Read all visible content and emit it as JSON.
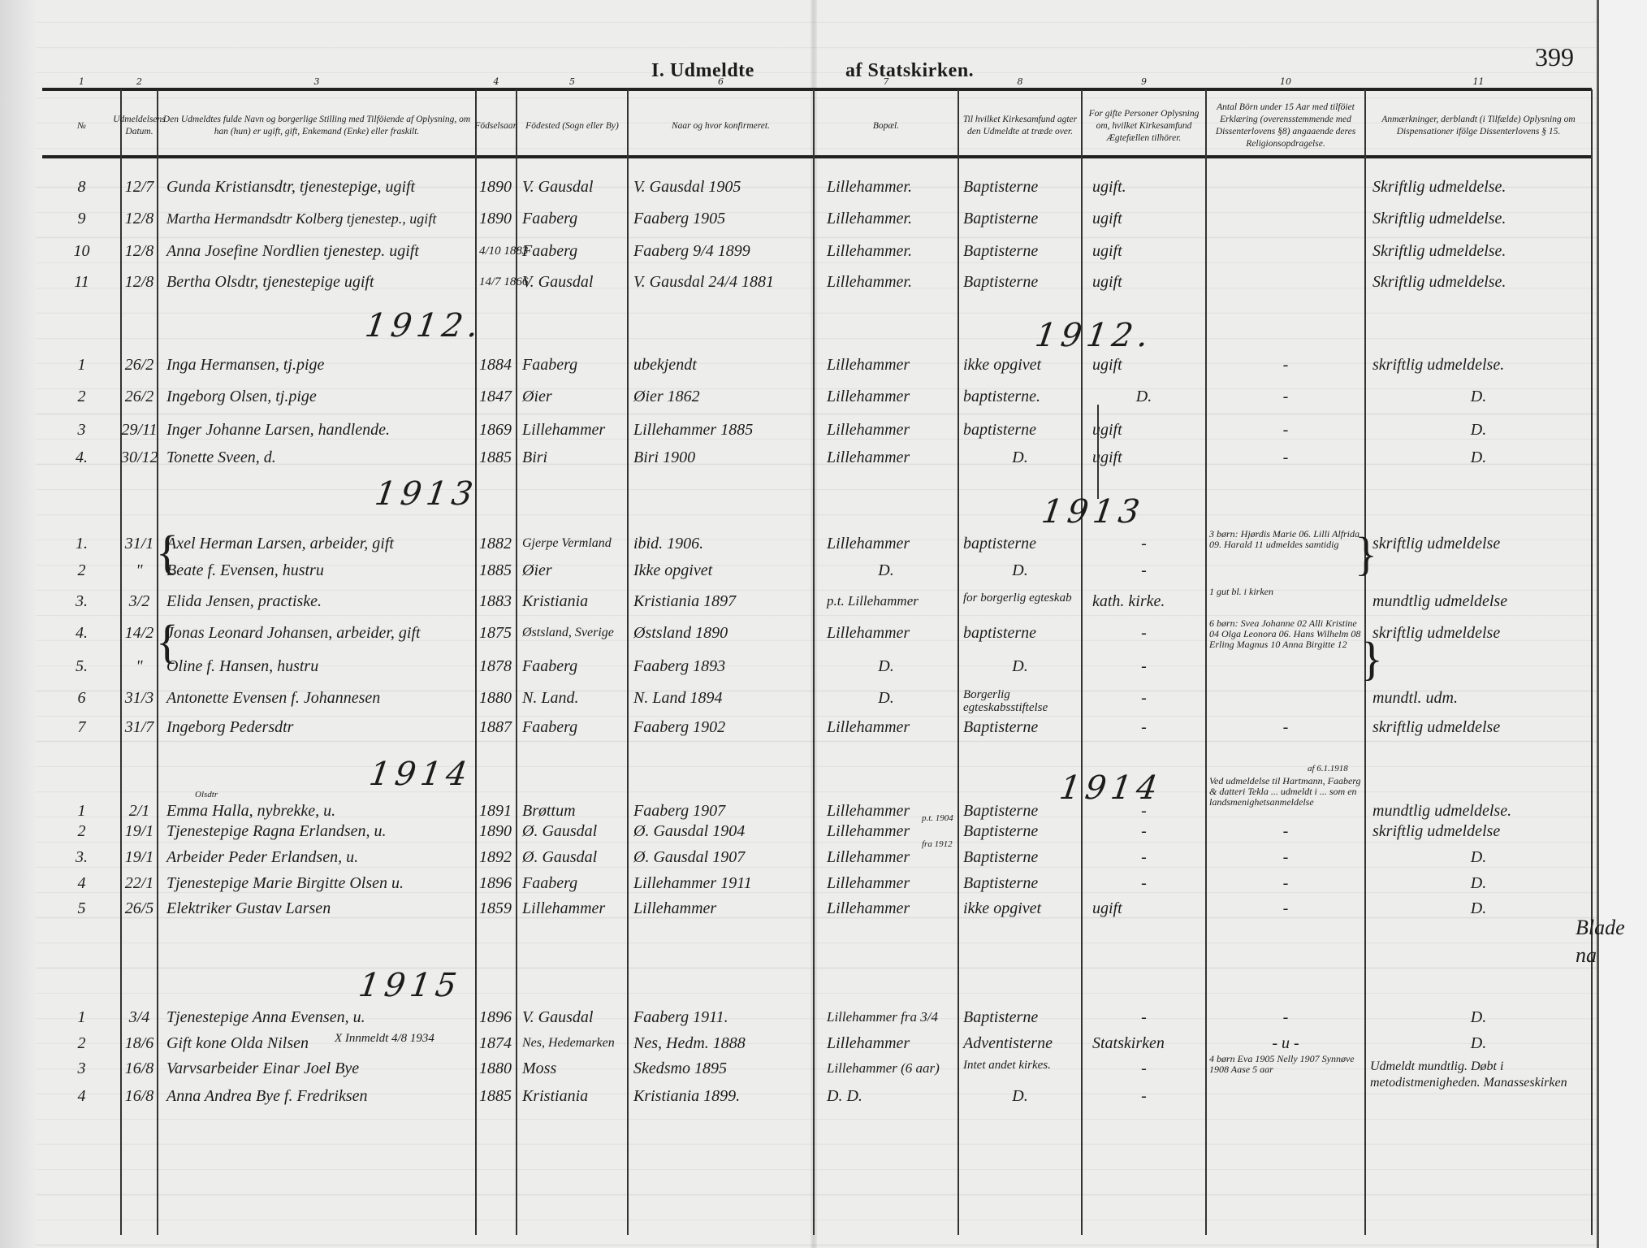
{
  "page": {
    "title_left": "I. Udmeldte",
    "title_right": "af Statskirken.",
    "page_number": "399",
    "margin_note": [
      "Blade",
      "na"
    ]
  },
  "columns": [
    {
      "number": "1",
      "header": "№"
    },
    {
      "number": "2",
      "header": "Udmeldelsens Datum."
    },
    {
      "number": "3",
      "header": "Den Udmeldtes fulde Navn og borgerlige Stilling med Tilföiende af Oplysning, om han (hun) er ugift, gift, Enkemand (Enke) eller fraskilt."
    },
    {
      "number": "4",
      "header": "Födselsaar."
    },
    {
      "number": "5",
      "header": "Födested (Sogn eller By)"
    },
    {
      "number": "6",
      "header": "Naar og hvor konfirmeret."
    },
    {
      "number": "7",
      "header": "Bopæl."
    },
    {
      "number": "8",
      "header": "Til hvilket Kirkesamfund agter den Udmeldte at træde over."
    },
    {
      "number": "9",
      "header": "For gifte Personer Oplysning om, hvilket Kirkesamfund Ægtefællen tilhörer."
    },
    {
      "number": "10",
      "header": "Antal Börn under 15 Aar med tilföiet Erklæring (overensstemmende med Dissenterlovens §8) angaaende deres Religionsopdragelse."
    },
    {
      "number": "11",
      "header": "Anmærkninger, derblandt (i Tilfælde) Oplysning om Dispensationer ifölge Dissenterlovens § 15."
    }
  ],
  "sections": [
    {
      "year_left": "",
      "year_right": "",
      "rows": [
        {
          "no": "8",
          "date": "12/7",
          "name": "Gunda Kristiansdtr, tjenestepige, ugift",
          "birth_year": "1890",
          "birthplace": "V. Gausdal",
          "confirmed": "V. Gausdal 1905",
          "residence": "Lillehammer.",
          "new_church": "Baptisterne",
          "spouse_church": "ugift.",
          "children": "",
          "remarks": "Skriftlig udmeldelse."
        },
        {
          "no": "9",
          "date": "12/8",
          "name": "Martha Hermandsdtr Kolberg tjenestep., ugift",
          "birth_year": "1890",
          "birthplace": "Faaberg",
          "confirmed": "Faaberg 1905",
          "residence": "Lillehammer.",
          "new_church": "Baptisterne",
          "spouse_church": "ugift",
          "children": "",
          "remarks": "Skriftlig udmeldelse."
        },
        {
          "no": "10",
          "date": "12/8",
          "name": "Anna Josefine Nordlien tjenestep. ugift",
          "birth_year": "4/10 1883",
          "birthplace": "Faaberg",
          "confirmed": "Faaberg 9/4 1899",
          "residence": "Lillehammer.",
          "new_church": "Baptisterne",
          "spouse_church": "ugift",
          "children": "",
          "remarks": "Skriftlig udmeldelse."
        },
        {
          "no": "11",
          "date": "12/8",
          "name": "Bertha Olsdtr, tjenestepige ugift",
          "birth_year": "14/7 1866",
          "birthplace": "V. Gausdal",
          "confirmed": "V. Gausdal 24/4 1881",
          "residence": "Lillehammer.",
          "new_church": "Baptisterne",
          "spouse_church": "ugift",
          "children": "",
          "remarks": "Skriftlig udmeldelse."
        }
      ]
    },
    {
      "year_left": "1912.",
      "year_right": "1912.",
      "rows": [
        {
          "no": "1",
          "date": "26/2",
          "name": "Inga Hermansen, tj.pige",
          "birth_year": "1884",
          "birthplace": "Faaberg",
          "confirmed": "ubekjendt",
          "residence": "Lillehammer",
          "new_church": "ikke opgivet",
          "spouse_church": "ugift",
          "children": "-",
          "remarks": "skriftlig udmeldelse."
        },
        {
          "no": "2",
          "date": "26/2",
          "name": "Ingeborg Olsen, tj.pige",
          "birth_year": "1847",
          "birthplace": "Øier",
          "confirmed": "Øier 1862",
          "residence": "Lillehammer",
          "new_church": "baptisterne.",
          "spouse_church": "D.",
          "children": "-",
          "remarks": "D."
        },
        {
          "no": "3",
          "date": "29/11",
          "name": "Inger Johanne Larsen, handlende.",
          "birth_year": "1869",
          "birthplace": "Lillehammer",
          "confirmed": "Lillehammer 1885",
          "residence": "Lillehammer",
          "new_church": "baptisterne",
          "spouse_church": "ugift",
          "children": "-",
          "remarks": "D."
        },
        {
          "no": "4.",
          "date": "30/12",
          "name": "Tonette Sveen, d.",
          "birth_year": "1885",
          "birthplace": "Biri",
          "confirmed": "Biri 1900",
          "residence": "Lillehammer",
          "new_church": "D.",
          "spouse_church": "ugift",
          "children": "-",
          "remarks": "D."
        }
      ]
    },
    {
      "year_left": "1913",
      "year_right": "1913",
      "rows": [
        {
          "no": "1.",
          "date": "31/1",
          "name": "Axel Herman Larsen, arbeider, gift",
          "birth_year": "1882",
          "birthplace": "Gjerpe Vermland",
          "confirmed": "ibid. 1906.",
          "residence": "Lillehammer",
          "new_church": "baptisterne",
          "spouse_church": "-",
          "children": "3 børn: Hjørdis Marie 06. Lilli Alfrida 09. Harald 11 udmeldes samtidig",
          "remarks": "skriftlig udmeldelse"
        },
        {
          "no": "2",
          "date": "\"",
          "name": "Beate f. Evensen, hustru",
          "birth_year": "1885",
          "birthplace": "Øier",
          "confirmed": "Ikke opgivet",
          "residence": "D.",
          "new_church": "D.",
          "spouse_church": "-",
          "children": "",
          "remarks": ""
        },
        {
          "no": "3.",
          "date": "3/2",
          "name": "Elida Jensen, practiske.",
          "birth_year": "1883",
          "birthplace": "Kristiania",
          "confirmed": "Kristiania 1897",
          "residence": "p.t. Lillehammer",
          "new_church": "for borgerlig egteskab",
          "spouse_church": "kath. kirke.",
          "children": "1 gut bl. i kirken",
          "remarks": "mundtlig udmeldelse"
        },
        {
          "no": "4.",
          "date": "14/2",
          "name": "Jonas Leonard Johansen, arbeider, gift",
          "birth_year": "1875",
          "birthplace": "Østsland, Sverige",
          "confirmed": "Østsland 1890",
          "residence": "Lillehammer",
          "new_church": "baptisterne",
          "spouse_church": "-",
          "children": "6 børn: Svea Johanne 02 Alli Kristine 04 Olga Leonora 06. Hans Wilhelm 08 Erling Magnus 10 Anna Birgitte 12",
          "remarks": "skriftlig udmeldelse"
        },
        {
          "no": "5.",
          "date": "\"",
          "name": "Oline f. Hansen, hustru",
          "birth_year": "1878",
          "birthplace": "Faaberg",
          "confirmed": "Faaberg 1893",
          "residence": "D.",
          "new_church": "D.",
          "spouse_church": "-",
          "children": "",
          "remarks": ""
        },
        {
          "no": "6",
          "date": "31/3",
          "name": "Antonette Evensen f. Johannesen",
          "birth_year": "1880",
          "birthplace": "N. Land.",
          "confirmed": "N. Land 1894",
          "residence": "D.",
          "new_church": "Borgerlig egteskabsstiftelse",
          "spouse_church": "-",
          "children": "",
          "remarks": "mundtl. udm."
        },
        {
          "no": "7",
          "date": "31/7",
          "name": "Ingeborg Pedersdtr",
          "birth_year": "1887",
          "birthplace": "Faaberg",
          "confirmed": "Faaberg 1902",
          "residence": "Lillehammer",
          "new_church": "Baptisterne",
          "spouse_church": "-",
          "children": "-",
          "remarks": "skriftlig udmeldelse"
        }
      ]
    },
    {
      "year_left": "1914",
      "year_right": "1914",
      "rows": [
        {
          "no": "1",
          "date": "2/1",
          "name": "Emma Halla, nybrekke, u.",
          "name_note": "Olsdtr",
          "birth_year": "1891",
          "birthplace": "Brøttum",
          "confirmed": "Faaberg 1907",
          "residence": "Lillehammer",
          "new_church": "Baptisterne",
          "spouse_church": "-",
          "children": "Ved udmeldelse til Hartmann, Faaberg & datteri Tekla ... udmeldt i ... som en landsmenighetsanmeldelse",
          "children_note": "af 6.1.1918",
          "remarks": "mundtlig udmeldelse."
        },
        {
          "no": "2",
          "date": "19/1",
          "name": "Tjenestepige Ragna Erlandsen, u.",
          "birth_year": "1890",
          "birthplace": "Ø. Gausdal",
          "confirmed": "Ø. Gausdal 1904",
          "residence": "Lillehammer",
          "residence_note": "p.t. 1904",
          "new_church": "Baptisterne",
          "spouse_church": "-",
          "children": "-",
          "remarks": "skriftlig udmeldelse"
        },
        {
          "no": "3.",
          "date": "19/1",
          "name": "Arbeider Peder Erlandsen, u.",
          "birth_year": "1892",
          "birthplace": "Ø. Gausdal",
          "confirmed": "Ø. Gausdal 1907",
          "residence": "Lillehammer",
          "residence_note": "fra 1912",
          "new_church": "Baptisterne",
          "spouse_church": "-",
          "children": "-",
          "remarks": "D."
        },
        {
          "no": "4",
          "date": "22/1",
          "name": "Tjenestepige Marie Birgitte Olsen u.",
          "birth_year": "1896",
          "birthplace": "Faaberg",
          "confirmed": "Lillehammer 1911",
          "residence": "Lillehammer",
          "new_church": "Baptisterne",
          "spouse_church": "-",
          "children": "-",
          "remarks": "D."
        },
        {
          "no": "5",
          "date": "26/5",
          "name": "Elektriker Gustav Larsen",
          "birth_year": "1859",
          "birthplace": "Lillehammer",
          "confirmed": "Lillehammer",
          "residence": "Lillehammer",
          "new_church": "ikke opgivet",
          "spouse_church": "ugift",
          "children": "-",
          "remarks": "D."
        }
      ]
    },
    {
      "year_left": "1915",
      "year_right": "",
      "rows": [
        {
          "no": "1",
          "date": "3/4",
          "name": "Tjenestepige Anna Evensen, u.",
          "birth_year": "1896",
          "birthplace": "V. Gausdal",
          "confirmed": "Faaberg 1911.",
          "residence": "Lillehammer fra 3/4",
          "new_church": "Baptisterne",
          "spouse_church": "-",
          "children": "-",
          "remarks": "D."
        },
        {
          "no": "2",
          "date": "18/6",
          "name": "Gift kone Olda Nilsen",
          "name_note": "X Innmeldt 4/8 1934",
          "birth_year": "1874",
          "birthplace": "Nes, Hedemarken",
          "confirmed": "Nes, Hedm. 1888",
          "residence": "Lillehammer",
          "new_church": "Adventisterne",
          "spouse_church": "Statskirken",
          "children": "- u -",
          "remarks": "D."
        },
        {
          "no": "3",
          "date": "16/8",
          "name": "Varvsarbeider Einar Joel Bye",
          "birth_year": "1880",
          "birthplace": "Moss",
          "confirmed": "Skedsmo 1895",
          "residence": "Lillehammer (6 aar)",
          "new_church": "Intet andet kirkes.",
          "spouse_church": "-",
          "children": "4 børn Eva 1905 Nelly 1907 Synnøve 1908 Aase 5 aar",
          "remarks": "Udmeldt mundtlig. Døbt i metodistmenigheden. Manasseskirken"
        },
        {
          "no": "4",
          "date": "16/8",
          "name": "Anna Andrea Bye f. Fredriksen",
          "birth_year": "1885",
          "birthplace": "Kristiania",
          "confirmed": "Kristiania 1899.",
          "residence": "D.   D.",
          "new_church": "D.",
          "spouse_church": "-",
          "children": "",
          "remarks": ""
        }
      ]
    }
  ]
}
